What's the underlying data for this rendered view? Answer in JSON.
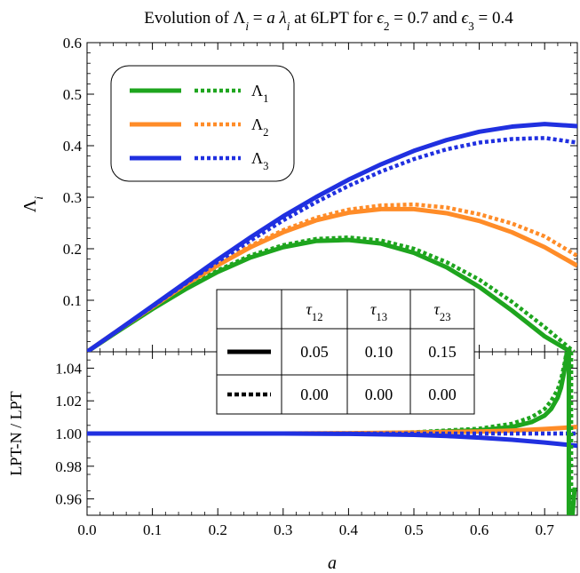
{
  "chart_data": [
    {
      "type": "line",
      "panel": "top",
      "title": "Evolution of Λᵢ = a λᵢ at 6LPT for ϵ₂ = 0.7 and ϵ₃ = 0.4",
      "title_parts": [
        "Evolution of Λ",
        "i",
        " = ",
        "a",
        " ",
        "λ",
        "i",
        " at 6LPT for ",
        "ϵ",
        "2",
        " = 0.7 and ",
        "ϵ",
        "3",
        " = 0.4"
      ],
      "xlabel": "a",
      "ylabel": "Λ",
      "ylabel_sub": "i",
      "xlim": [
        0,
        0.75
      ],
      "ylim": [
        0,
        0.6
      ],
      "yticks": [
        "0.1",
        "0.2",
        "0.3",
        "0.4",
        "0.5",
        "0.6"
      ],
      "ytick_values": [
        0.1,
        0.2,
        0.3,
        0.4,
        0.5,
        0.6
      ],
      "legend": {
        "placement": "top-left",
        "entries": [
          {
            "label": "Λ",
            "sub": "1",
            "color": "#1ea51e"
          },
          {
            "label": "Λ",
            "sub": "2",
            "color": "#ff8c28"
          },
          {
            "label": "Λ",
            "sub": "3",
            "color": "#2030e0"
          }
        ]
      },
      "series": [
        {
          "name": "Λ1",
          "style": "solid",
          "color": "#1ea51e",
          "x": [
            0.0,
            0.05,
            0.1,
            0.15,
            0.2,
            0.25,
            0.3,
            0.35,
            0.4,
            0.45,
            0.5,
            0.55,
            0.6,
            0.65,
            0.7,
            0.74
          ],
          "y": [
            0.0,
            0.042,
            0.083,
            0.121,
            0.155,
            0.183,
            0.203,
            0.215,
            0.217,
            0.21,
            0.192,
            0.164,
            0.126,
            0.08,
            0.03,
            0.0
          ]
        },
        {
          "name": "Λ1",
          "style": "dotted",
          "color": "#1ea51e",
          "x": [
            0.0,
            0.05,
            0.1,
            0.15,
            0.2,
            0.25,
            0.3,
            0.35,
            0.4,
            0.45,
            0.5,
            0.55,
            0.6,
            0.65,
            0.7,
            0.745
          ],
          "y": [
            0.0,
            0.042,
            0.084,
            0.123,
            0.158,
            0.187,
            0.207,
            0.219,
            0.222,
            0.216,
            0.2,
            0.174,
            0.14,
            0.097,
            0.048,
            0.0
          ]
        },
        {
          "name": "Λ2",
          "style": "solid",
          "color": "#ff8c28",
          "x": [
            0.0,
            0.05,
            0.1,
            0.15,
            0.2,
            0.25,
            0.3,
            0.35,
            0.4,
            0.45,
            0.5,
            0.55,
            0.6,
            0.65,
            0.7,
            0.75
          ],
          "y": [
            0.0,
            0.044,
            0.087,
            0.13,
            0.168,
            0.203,
            0.232,
            0.255,
            0.27,
            0.277,
            0.277,
            0.269,
            0.254,
            0.232,
            0.203,
            0.167
          ]
        },
        {
          "name": "Λ2",
          "style": "dotted",
          "color": "#ff8c28",
          "x": [
            0.0,
            0.05,
            0.1,
            0.15,
            0.2,
            0.25,
            0.3,
            0.35,
            0.4,
            0.45,
            0.5,
            0.55,
            0.6,
            0.65,
            0.7,
            0.75
          ],
          "y": [
            0.0,
            0.044,
            0.088,
            0.131,
            0.17,
            0.206,
            0.236,
            0.26,
            0.276,
            0.284,
            0.286,
            0.28,
            0.267,
            0.249,
            0.224,
            0.186
          ]
        },
        {
          "name": "Λ3",
          "style": "solid",
          "color": "#2030e0",
          "x": [
            0.0,
            0.05,
            0.1,
            0.15,
            0.2,
            0.25,
            0.3,
            0.35,
            0.4,
            0.45,
            0.5,
            0.55,
            0.6,
            0.65,
            0.7,
            0.75
          ],
          "y": [
            0.0,
            0.044,
            0.089,
            0.134,
            0.179,
            0.222,
            0.263,
            0.3,
            0.334,
            0.364,
            0.39,
            0.411,
            0.427,
            0.437,
            0.442,
            0.438
          ]
        },
        {
          "name": "Λ3",
          "style": "dotted",
          "color": "#2030e0",
          "x": [
            0.0,
            0.05,
            0.1,
            0.15,
            0.2,
            0.25,
            0.3,
            0.35,
            0.4,
            0.45,
            0.5,
            0.55,
            0.6,
            0.65,
            0.7,
            0.75
          ],
          "y": [
            0.0,
            0.044,
            0.088,
            0.132,
            0.175,
            0.216,
            0.255,
            0.29,
            0.322,
            0.35,
            0.374,
            0.393,
            0.406,
            0.413,
            0.415,
            0.406
          ]
        }
      ],
      "table": {
        "placement": "bottom-right",
        "columns": [
          {
            "sym": "τ",
            "sub": "12"
          },
          {
            "sym": "τ",
            "sub": "13"
          },
          {
            "sym": "τ",
            "sub": "23"
          }
        ],
        "rows": [
          {
            "style": "solid",
            "values": [
              "0.05",
              "0.10",
              "0.15"
            ]
          },
          {
            "style": "dotted",
            "values": [
              "0.00",
              "0.00",
              "0.00"
            ]
          }
        ]
      }
    },
    {
      "type": "line",
      "panel": "bottom",
      "ylabel": "LPT-N / LPT",
      "xlabel": "a",
      "xlim": [
        0,
        0.75
      ],
      "ylim": [
        0.95,
        1.05
      ],
      "xticks": [
        "0.0",
        "0.1",
        "0.2",
        "0.3",
        "0.4",
        "0.5",
        "0.6",
        "0.7"
      ],
      "xtick_values": [
        0.0,
        0.1,
        0.2,
        0.3,
        0.4,
        0.5,
        0.6,
        0.7
      ],
      "yticks": [
        "0.96",
        "0.98",
        "1.00",
        "1.02",
        "1.04"
      ],
      "ytick_values": [
        0.96,
        0.98,
        1.0,
        1.02,
        1.04
      ],
      "series": [
        {
          "name": "Λ1",
          "style": "solid",
          "color": "#1ea51e",
          "x": [
            0.0,
            0.4,
            0.5,
            0.6,
            0.65,
            0.68,
            0.7,
            0.71,
            0.72,
            0.725,
            0.73,
            0.733,
            0.736
          ],
          "y": [
            1.0,
            1.0,
            1.0005,
            1.002,
            1.004,
            1.007,
            1.011,
            1.015,
            1.022,
            1.028,
            1.038,
            1.046,
            1.06
          ]
        },
        {
          "name": "Λ1",
          "style": "solid",
          "color": "#1ea51e",
          "x": [
            0.741,
            0.7425,
            0.7445,
            0.746
          ],
          "y": [
            0.94,
            0.95,
            0.96,
            0.967
          ]
        },
        {
          "name": "Λ1",
          "style": "dotted",
          "color": "#1ea51e",
          "x": [
            0.0,
            0.4,
            0.5,
            0.6,
            0.65,
            0.68,
            0.7,
            0.71,
            0.72,
            0.725,
            0.73,
            0.734,
            0.738
          ],
          "y": [
            1.0,
            1.0,
            1.0008,
            1.003,
            1.006,
            1.01,
            1.015,
            1.02,
            1.027,
            1.033,
            1.042,
            1.051,
            1.06
          ]
        },
        {
          "name": "Λ2",
          "style": "solid",
          "color": "#ff8c28",
          "x": [
            0.0,
            0.3,
            0.4,
            0.5,
            0.6,
            0.65,
            0.7,
            0.75
          ],
          "y": [
            1.0,
            1.0,
            1.0002,
            1.0006,
            1.0012,
            1.0018,
            1.0028,
            1.004
          ]
        },
        {
          "name": "Λ2",
          "style": "dotted",
          "color": "#ff8c28",
          "x": [
            0.0,
            0.3,
            0.4,
            0.5,
            0.6,
            0.7,
            0.75
          ],
          "y": [
            1.0,
            1.0,
            1.0,
            1.0,
            1.0,
            1.0,
            1.0
          ]
        },
        {
          "name": "Λ3",
          "style": "solid",
          "color": "#2030e0",
          "x": [
            0.0,
            0.3,
            0.4,
            0.5,
            0.55,
            0.6,
            0.65,
            0.7,
            0.75
          ],
          "y": [
            1.0,
            1.0,
            0.9998,
            0.9992,
            0.9985,
            0.9975,
            0.9962,
            0.9945,
            0.9925
          ]
        },
        {
          "name": "Λ3",
          "style": "dotted",
          "color": "#2030e0",
          "x": [
            0.0,
            0.3,
            0.4,
            0.5,
            0.6,
            0.7,
            0.75
          ],
          "y": [
            1.0,
            1.0,
            1.0,
            1.0,
            1.0,
            1.0,
            1.0
          ]
        }
      ]
    }
  ]
}
